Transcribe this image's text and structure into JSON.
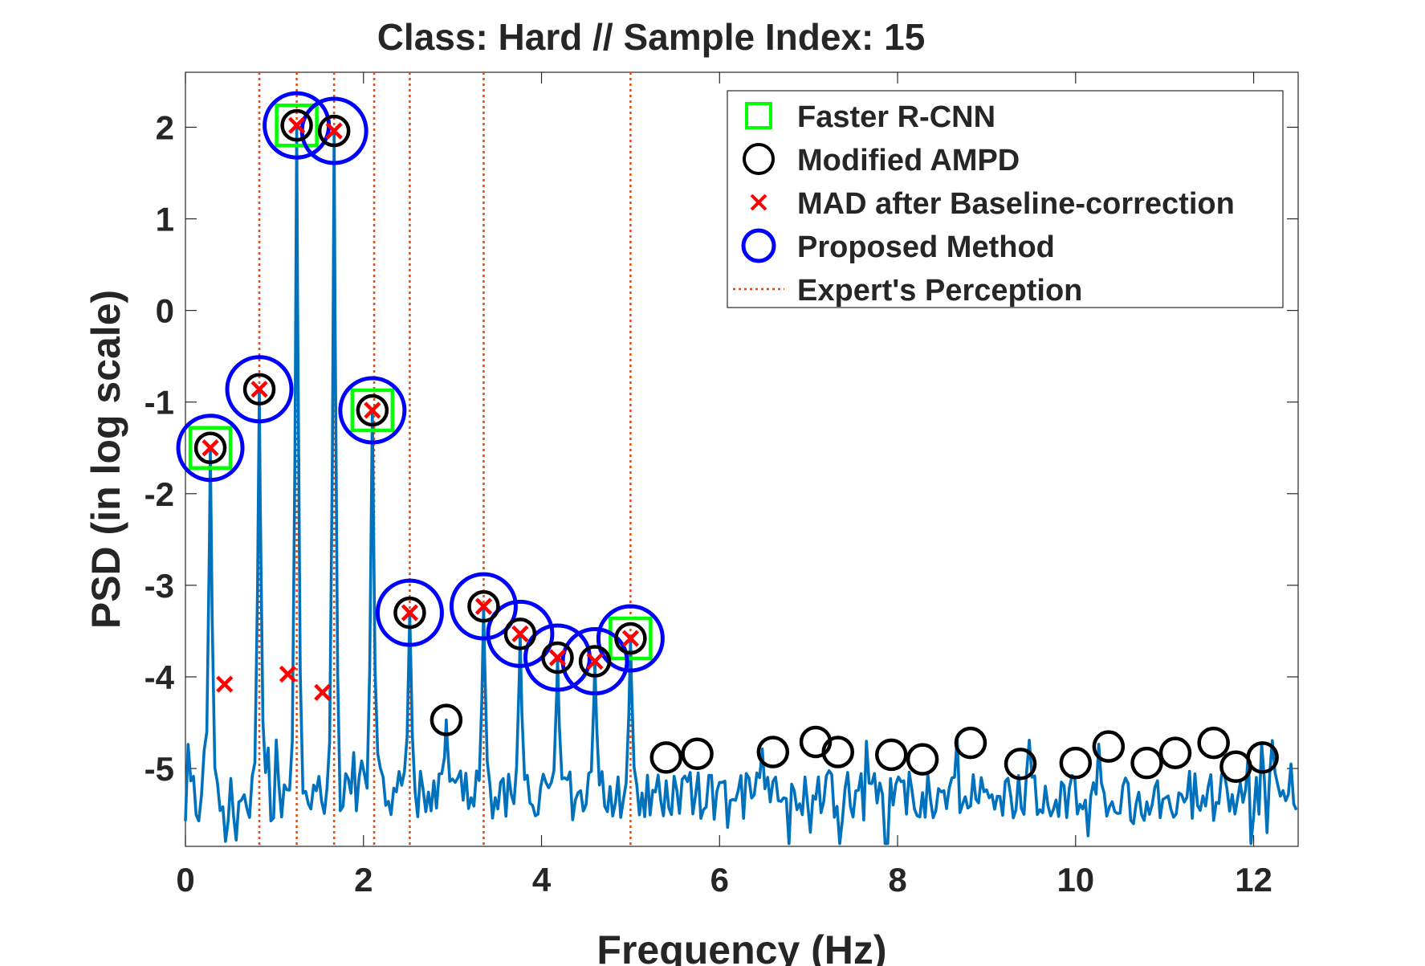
{
  "chart_data": {
    "type": "line",
    "title": "Class: Hard  //  Sample Index: 15",
    "xlabel": "Frequency (Hz)",
    "ylabel": "PSD (in log scale)",
    "xlim": [
      0,
      12.5
    ],
    "ylim": [
      -5.85,
      2.6
    ],
    "xticks": [
      0,
      2,
      4,
      6,
      8,
      10,
      12
    ],
    "xtick_labels": [
      "0",
      "2",
      "4",
      "6",
      "8",
      "10",
      "12"
    ],
    "yticks": [
      2,
      1,
      0,
      -1,
      -2,
      -3,
      -4,
      -5
    ],
    "ytick_labels": [
      "2",
      "1",
      "0",
      "-1",
      "-2",
      "-3",
      "-4",
      "-5"
    ],
    "grid": false,
    "legend_placement": "top-right",
    "colors": {
      "psd_line": "#0072BD",
      "faster_rcnn": "#00FF00",
      "modified_ampd": "#000000",
      "mad": "#FF0000",
      "proposed": "#0000FF",
      "expert": "#D95319"
    },
    "legend": [
      {
        "key": "faster_rcnn",
        "label": "Faster R-CNN"
      },
      {
        "key": "modified_ampd",
        "label": "Modified AMPD"
      },
      {
        "key": "mad",
        "label": "MAD after Baseline-correction"
      },
      {
        "key": "proposed",
        "label": "Proposed Method"
      },
      {
        "key": "expert",
        "label": "Expert's Perception"
      }
    ],
    "peaks": [
      {
        "x": 0.28,
        "y": -1.5
      },
      {
        "x": 0.83,
        "y": -0.86
      },
      {
        "x": 1.25,
        "y": 2.02
      },
      {
        "x": 1.67,
        "y": 1.96
      },
      {
        "x": 2.1,
        "y": -1.09
      },
      {
        "x": 2.52,
        "y": -3.3
      },
      {
        "x": 2.93,
        "y": -4.47
      },
      {
        "x": 3.35,
        "y": -3.23
      },
      {
        "x": 3.76,
        "y": -3.53
      },
      {
        "x": 4.18,
        "y": -3.79
      },
      {
        "x": 4.6,
        "y": -3.83
      },
      {
        "x": 5.0,
        "y": -3.58
      }
    ],
    "faster_rcnn": [
      [
        0.28,
        -1.5
      ],
      [
        1.25,
        2.02
      ],
      [
        2.1,
        -1.09
      ],
      [
        5.0,
        -3.58
      ]
    ],
    "modified_ampd": [
      [
        0.28,
        -1.5
      ],
      [
        0.83,
        -0.86
      ],
      [
        1.25,
        2.02
      ],
      [
        1.67,
        1.96
      ],
      [
        2.1,
        -1.09
      ],
      [
        2.52,
        -3.3
      ],
      [
        2.93,
        -4.47
      ],
      [
        3.35,
        -3.23
      ],
      [
        3.76,
        -3.53
      ],
      [
        4.18,
        -3.79
      ],
      [
        4.6,
        -3.83
      ],
      [
        5.0,
        -3.58
      ],
      [
        5.4,
        -4.88
      ],
      [
        5.75,
        -4.84
      ],
      [
        6.6,
        -4.82
      ],
      [
        7.08,
        -4.71
      ],
      [
        7.33,
        -4.82
      ],
      [
        7.93,
        -4.85
      ],
      [
        8.28,
        -4.9
      ],
      [
        8.82,
        -4.72
      ],
      [
        9.38,
        -4.95
      ],
      [
        10.0,
        -4.94
      ],
      [
        10.37,
        -4.76
      ],
      [
        10.8,
        -4.94
      ],
      [
        11.12,
        -4.83
      ],
      [
        11.55,
        -4.72
      ],
      [
        11.8,
        -4.98
      ],
      [
        12.1,
        -4.88
      ]
    ],
    "mad": [
      [
        0.28,
        -1.5
      ],
      [
        0.44,
        -4.08
      ],
      [
        0.83,
        -0.86
      ],
      [
        1.15,
        -3.97
      ],
      [
        1.25,
        2.02
      ],
      [
        1.54,
        -4.17
      ],
      [
        1.67,
        1.96
      ],
      [
        2.1,
        -1.09
      ],
      [
        2.52,
        -3.3
      ],
      [
        3.35,
        -3.23
      ],
      [
        3.76,
        -3.53
      ],
      [
        4.18,
        -3.79
      ],
      [
        4.6,
        -3.83
      ],
      [
        5.0,
        -3.58
      ]
    ],
    "proposed": [
      [
        0.28,
        -1.5
      ],
      [
        0.83,
        -0.86
      ],
      [
        1.25,
        2.02
      ],
      [
        1.67,
        1.96
      ],
      [
        2.1,
        -1.09
      ],
      [
        2.52,
        -3.3
      ],
      [
        3.35,
        -3.23
      ],
      [
        3.76,
        -3.53
      ],
      [
        4.18,
        -3.79
      ],
      [
        4.6,
        -3.83
      ],
      [
        5.0,
        -3.58
      ]
    ],
    "expert": [
      0.83,
      1.25,
      1.67,
      2.12,
      2.52,
      3.35,
      5.0
    ]
  }
}
